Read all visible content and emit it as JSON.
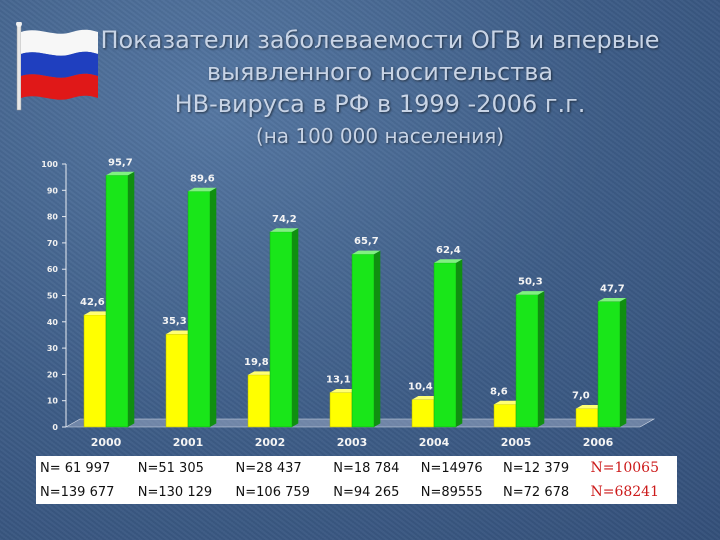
{
  "slide": {
    "title_lines": [
      "Показатели заболеваемости ОГВ и впервые",
      "выявленного носительства",
      "НВ-вируса в РФ в 1999 -2006 г.г."
    ],
    "subtitle": "(на 100 000 населения)"
  },
  "flag_icon": "russian-flag-icon",
  "colors": {
    "series_yellow": "#ffff00",
    "series_green": "#19e619",
    "background": "#3f5f88",
    "accent_red": "#cc1a1a"
  },
  "chart_data": {
    "type": "bar",
    "categories": [
      "2000",
      "2001",
      "2002",
      "2003",
      "2004",
      "2005",
      "2006"
    ],
    "series": [
      {
        "values": [
          42.6,
          35.3,
          19.8,
          13.1,
          10.4,
          8.6,
          7.0
        ],
        "labels": [
          "42,6",
          "35,3",
          "19,8",
          "13,1",
          "10,4",
          "8,6",
          "7,0"
        ],
        "color": "#ffff00"
      },
      {
        "values": [
          95.7,
          89.6,
          74.2,
          65.7,
          62.4,
          50.3,
          47.7
        ],
        "labels": [
          "95,7",
          "89,6",
          "74,2",
          "65,7",
          "62,4",
          "50,3",
          "47,7"
        ],
        "color": "#19e619"
      }
    ],
    "ylim": [
      0,
      100
    ],
    "yticks": [
      "0",
      "10",
      "20",
      "30",
      "40",
      "50",
      "60",
      "70",
      "80",
      "90",
      "100"
    ],
    "grid": false,
    "style": "3d"
  },
  "n_table": {
    "row1": [
      "N= 61 997",
      "N=51 305",
      "N=28 437",
      "N=18 784",
      "N=14976",
      "N=12 379",
      "N=10065"
    ],
    "row2": [
      "N=139 677",
      "N=130 129",
      "N=106 759",
      "N=94 265",
      "N=89555",
      "N=72 678",
      "N=68241"
    ]
  }
}
